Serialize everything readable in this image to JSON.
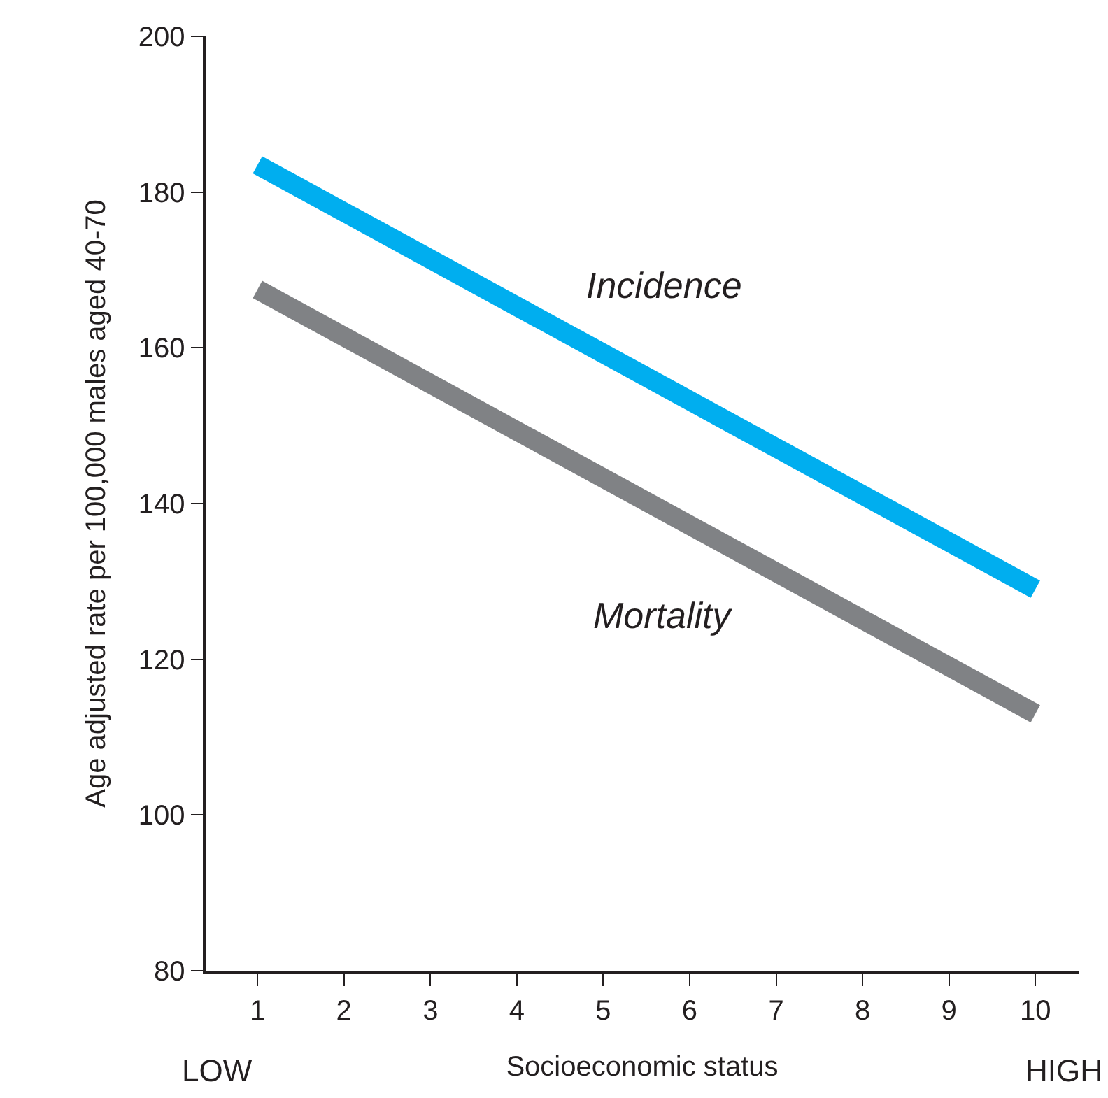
{
  "chart_data": {
    "type": "line",
    "xlabel": "Socioeconomic status",
    "ylabel": "Age adjusted rate per 100,000 males aged 40-70",
    "x": [
      1,
      10
    ],
    "series": [
      {
        "name": "Incidence",
        "color": "#00aeef",
        "values": [
          183.5,
          129
        ]
      },
      {
        "name": "Mortality",
        "color": "#808285",
        "values": [
          167.5,
          113
        ]
      }
    ],
    "xlim": [
      0.4,
      10.5
    ],
    "xticks": [
      1,
      2,
      3,
      4,
      5,
      6,
      7,
      8,
      9,
      10
    ],
    "ylim": [
      80,
      200
    ],
    "yticks": [
      80,
      100,
      120,
      140,
      160,
      180,
      200
    ],
    "grid": false,
    "legend": false,
    "marker": "none",
    "line_style": "solid",
    "annotations": [
      "LOW",
      "HIGH"
    ]
  }
}
